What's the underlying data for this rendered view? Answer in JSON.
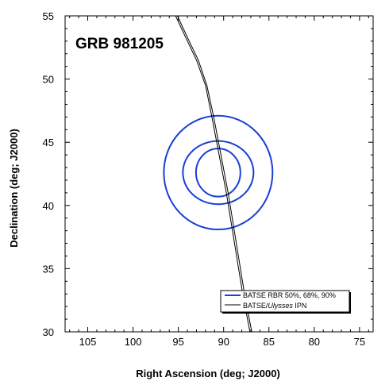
{
  "chart_data": {
    "type": "line",
    "title": "GRB 981205",
    "xlabel": "Right Ascension (deg; J2000)",
    "ylabel": "Declination (deg; J2000)",
    "xlim": [
      107.5,
      73.5
    ],
    "ylim": [
      30,
      55
    ],
    "x_ticks": [
      105,
      100,
      95,
      90,
      85,
      80,
      75
    ],
    "y_ticks": [
      30,
      35,
      40,
      45,
      50,
      55
    ],
    "x_tick_labels": [
      "105",
      "100",
      "95",
      "90",
      "85",
      "80",
      "75"
    ],
    "y_tick_labels": [
      "30",
      "35",
      "40",
      "45",
      "50",
      "55"
    ],
    "grid": false,
    "legend_position": "bottom-right",
    "colors": {
      "contours": "#1a3fd6",
      "annulus": "#000000"
    },
    "series": [
      {
        "name": "BATSE RBR 50%, 68%, 90%",
        "kind": "contours",
        "center": [
          90.6,
          42.6
        ],
        "contours": [
          {
            "level": "50%",
            "ra_halfwidth": 2.45,
            "dec_halfwidth": 1.9
          },
          {
            "level": "68%",
            "ra_halfwidth": 3.9,
            "dec_halfwidth": 2.5
          },
          {
            "level": "90%",
            "ra_halfwidth": 6.0,
            "dec_halfwidth": 4.5
          }
        ]
      },
      {
        "name": "BATSE/Ulysses IPN",
        "kind": "annulus",
        "lines": [
          {
            "points": [
              [
                95.3,
                55
              ],
              [
                94.0,
                53
              ],
              [
                93.0,
                51.5
              ],
              [
                92.0,
                49.5
              ],
              [
                91.3,
                47
              ],
              [
                90.5,
                44
              ],
              [
                89.7,
                41
              ],
              [
                88.8,
                37
              ],
              [
                87.9,
                33
              ],
              [
                87.1,
                30
              ]
            ]
          },
          {
            "points": [
              [
                95.1,
                55
              ],
              [
                93.8,
                53
              ],
              [
                92.8,
                51.5
              ],
              [
                91.85,
                49.5
              ],
              [
                91.1,
                47
              ],
              [
                90.3,
                44
              ],
              [
                89.5,
                41
              ],
              [
                88.6,
                37
              ],
              [
                87.7,
                33
              ],
              [
                86.9,
                30
              ]
            ]
          }
        ]
      }
    ],
    "legend": {
      "entries": [
        {
          "prefix": "BATSE RBR 50%, 68%, 90%",
          "italic": "",
          "suffix": "",
          "color": "#1a3fd6"
        },
        {
          "prefix": "BATSE/",
          "italic": "Ulysses",
          "suffix": " IPN",
          "color": "#000000"
        }
      ]
    }
  }
}
